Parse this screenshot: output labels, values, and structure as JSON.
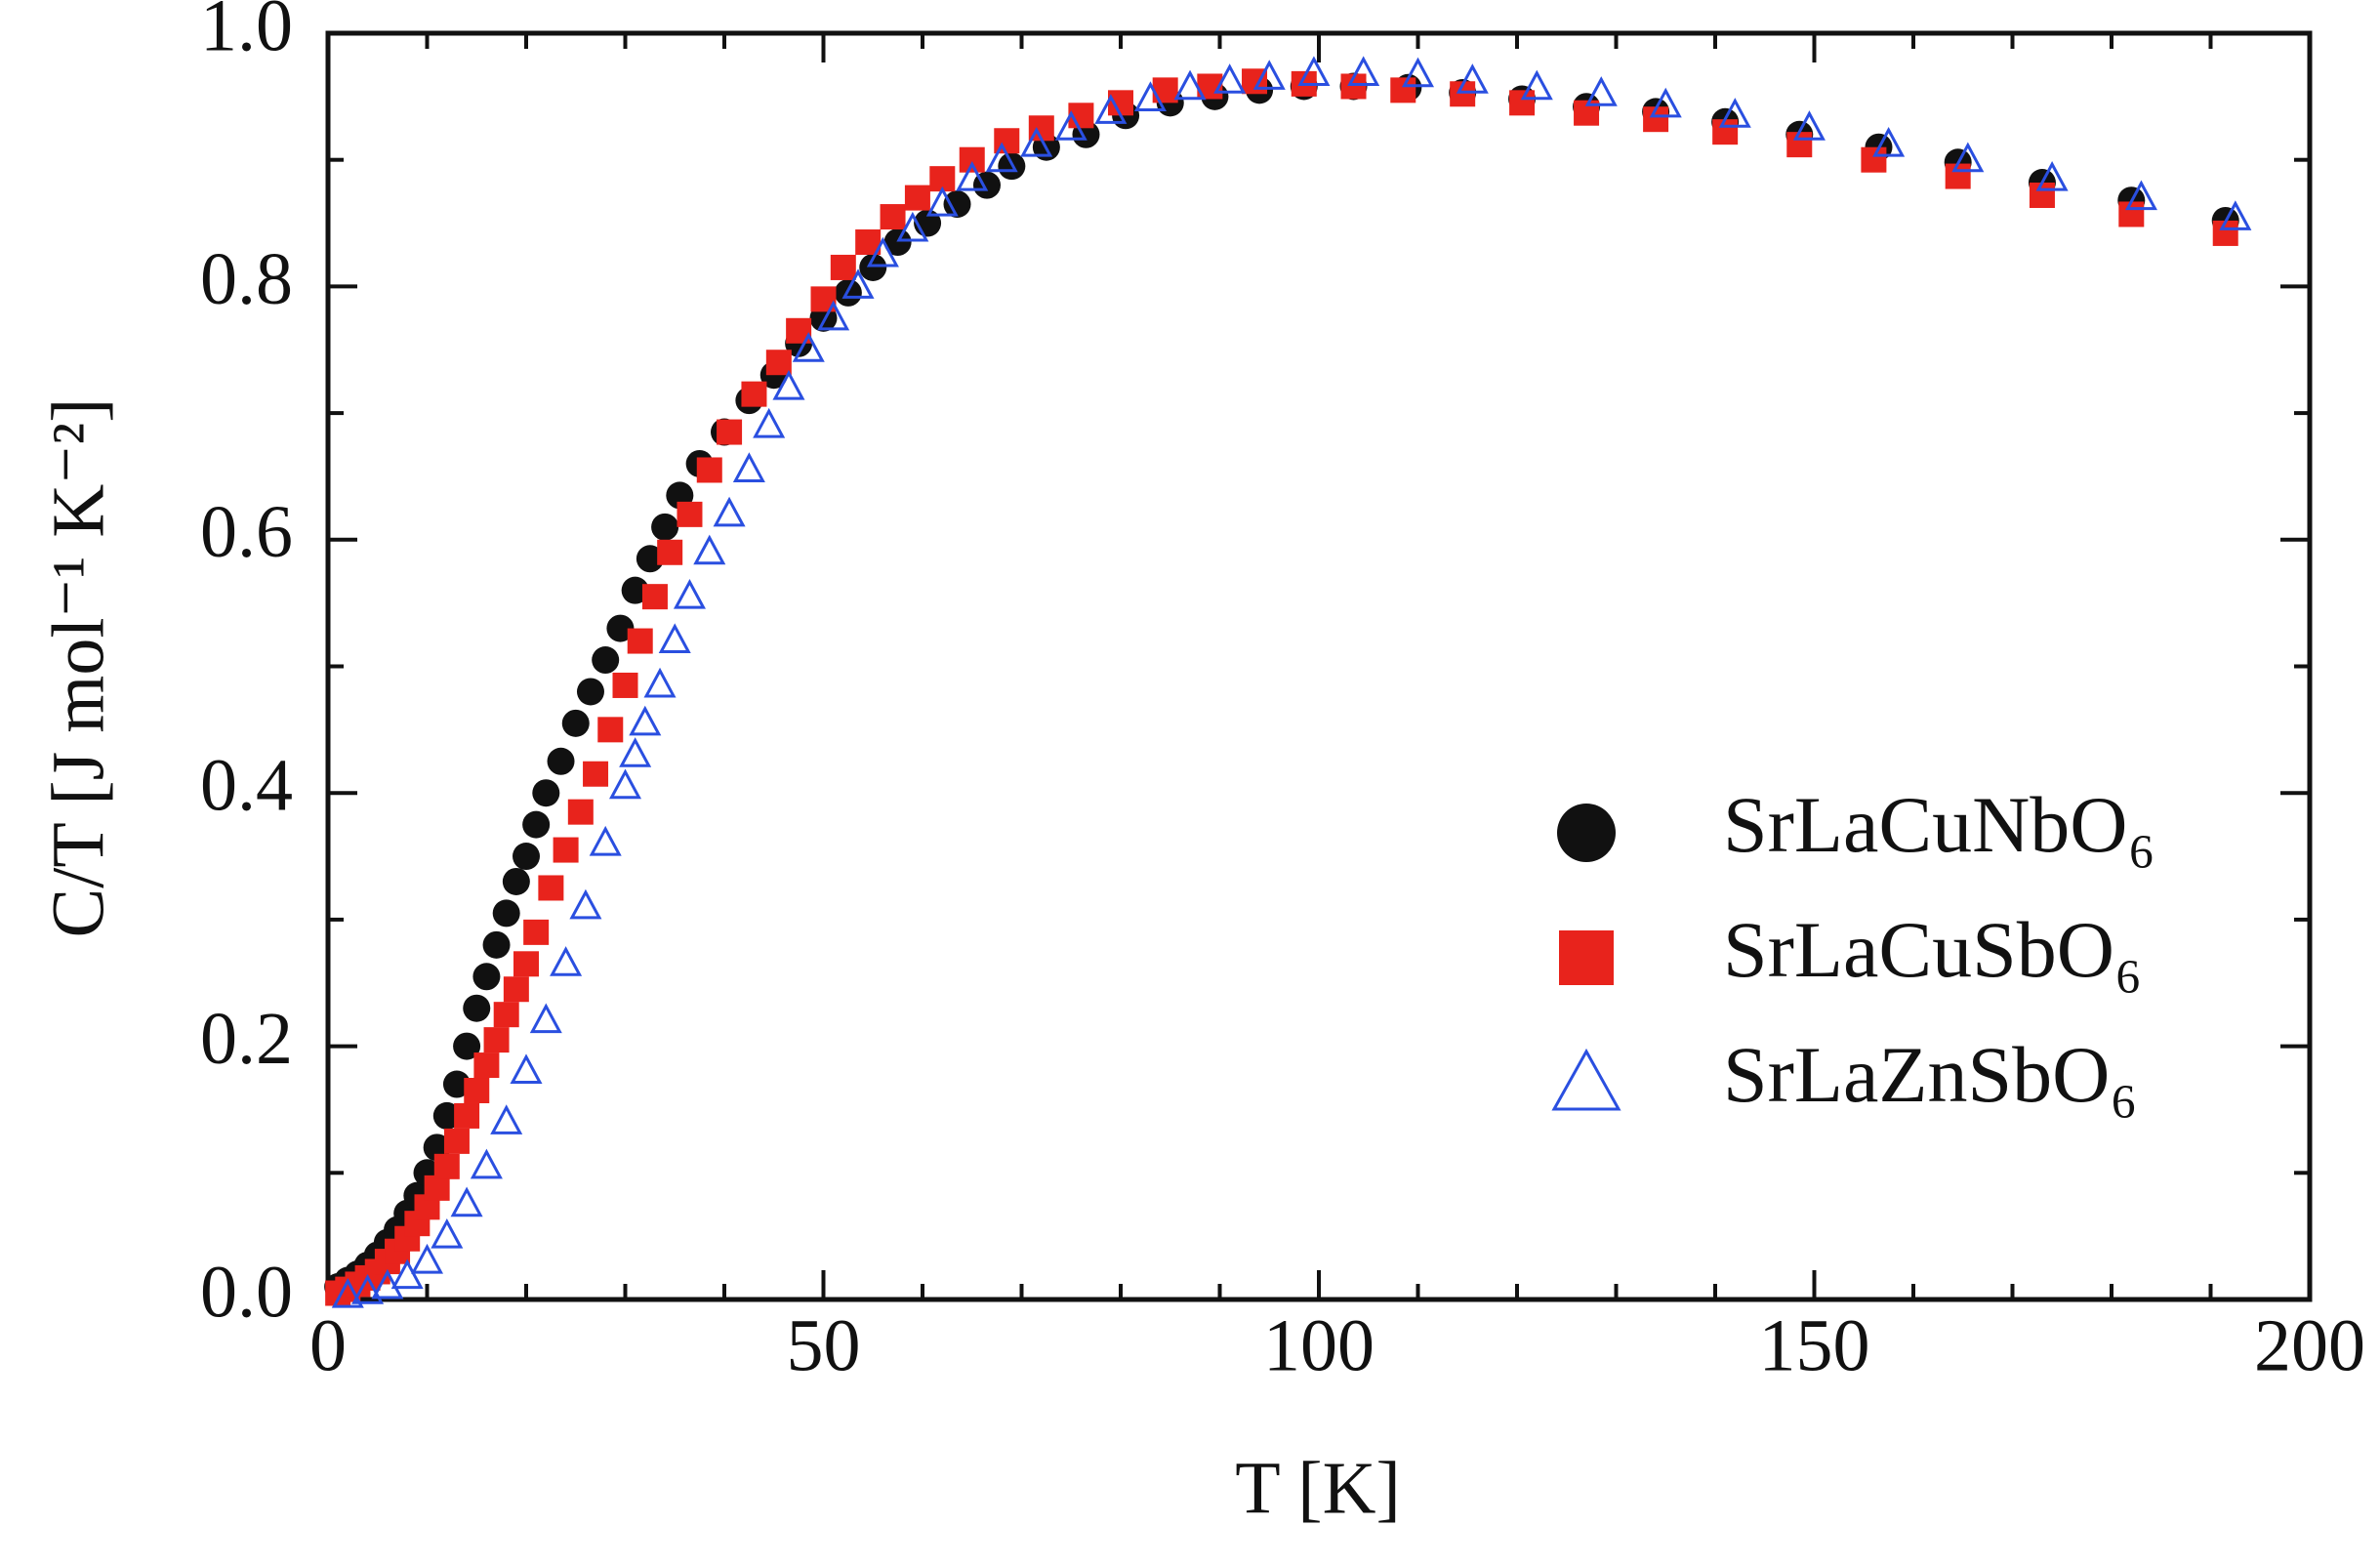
{
  "chart_data": {
    "type": "scatter",
    "xlabel": "T [K]",
    "ylabel": "C/T [J mol⁻¹ K⁻²]",
    "xlim": [
      0,
      200
    ],
    "ylim": [
      0,
      1
    ],
    "xticks": [
      0,
      50,
      100,
      150,
      200
    ],
    "yticks": [
      {
        "value": 0,
        "label": "0.0"
      },
      0.2,
      0.4,
      0.6,
      0.8,
      {
        "value": 1,
        "label": "1.0"
      }
    ],
    "xminorticks": [
      10,
      20,
      30,
      40,
      60,
      70,
      80,
      90,
      110,
      120,
      130,
      140,
      160,
      170,
      180,
      190
    ],
    "yminorticks": [
      0.1,
      0.3,
      0.5,
      0.7,
      0.9
    ],
    "legend": "lower right",
    "series": [
      {
        "name": "SrLaCuNbO₆",
        "color": "#111111",
        "marker": "circle",
        "x": [
          1,
          2,
          3,
          4,
          5,
          6,
          7,
          8,
          9,
          10,
          11,
          12,
          13,
          14,
          15,
          16,
          17,
          18,
          19,
          20,
          21,
          22,
          23.5,
          25,
          26.5,
          28,
          29.5,
          31,
          32.5,
          34,
          35.5,
          37.5,
          40,
          42.5,
          45,
          47.5,
          50,
          52.5,
          55,
          57.5,
          60.5,
          63.5,
          66.5,
          69,
          72.5,
          76.5,
          80.5,
          85,
          89.5,
          94,
          98.5,
          103.5,
          109,
          114.5,
          120.5,
          127,
          134,
          141,
          148.5,
          156.5,
          164.5,
          173,
          182,
          191.5
        ],
        "values": [
          0.01,
          0.015,
          0.02,
          0.027,
          0.035,
          0.045,
          0.055,
          0.068,
          0.082,
          0.1,
          0.12,
          0.145,
          0.17,
          0.2,
          0.23,
          0.255,
          0.28,
          0.305,
          0.33,
          0.35,
          0.375,
          0.4,
          0.425,
          0.455,
          0.48,
          0.505,
          0.53,
          0.56,
          0.585,
          0.61,
          0.635,
          0.66,
          0.685,
          0.71,
          0.73,
          0.755,
          0.775,
          0.795,
          0.815,
          0.835,
          0.85,
          0.865,
          0.88,
          0.895,
          0.91,
          0.92,
          0.935,
          0.945,
          0.95,
          0.955,
          0.958,
          0.958,
          0.957,
          0.953,
          0.948,
          0.942,
          0.938,
          0.93,
          0.92,
          0.91,
          0.898,
          0.882,
          0.868,
          0.852
        ]
      },
      {
        "name": "SrLaCuSbO₆",
        "color": "#e8231c",
        "marker": "square",
        "x": [
          1,
          2,
          3,
          4,
          5,
          6,
          7,
          8,
          9,
          10,
          11,
          12,
          13,
          14,
          15,
          16,
          17,
          18,
          19,
          20,
          21,
          22.5,
          24,
          25.5,
          27,
          28.5,
          30,
          31.5,
          33,
          34.5,
          36.5,
          38.5,
          40.5,
          43,
          45.5,
          47.5,
          50,
          52,
          54.5,
          57,
          59.5,
          62,
          65,
          68.5,
          72,
          76,
          80,
          84.5,
          89,
          93.5,
          98.5,
          103.5,
          108.5,
          114.5,
          120.5,
          127,
          134,
          141,
          148.5,
          156,
          164.5,
          173,
          182,
          191.5
        ],
        "values": [
          0.005,
          0.008,
          0.012,
          0.017,
          0.022,
          0.03,
          0.038,
          0.048,
          0.06,
          0.073,
          0.088,
          0.105,
          0.125,
          0.145,
          0.165,
          0.185,
          0.205,
          0.225,
          0.245,
          0.265,
          0.29,
          0.325,
          0.355,
          0.385,
          0.415,
          0.45,
          0.485,
          0.52,
          0.555,
          0.59,
          0.62,
          0.655,
          0.685,
          0.715,
          0.74,
          0.765,
          0.79,
          0.815,
          0.835,
          0.855,
          0.87,
          0.885,
          0.9,
          0.915,
          0.925,
          0.935,
          0.945,
          0.955,
          0.958,
          0.962,
          0.96,
          0.958,
          0.955,
          0.952,
          0.945,
          0.937,
          0.932,
          0.922,
          0.912,
          0.9,
          0.887,
          0.872,
          0.857,
          0.842
        ]
      },
      {
        "name": "SrLaZnSbO₆",
        "color": "#2a4fe0",
        "marker": "triangle-open",
        "x": [
          2,
          4,
          6,
          8,
          10,
          12,
          14,
          16,
          18,
          20,
          22,
          24,
          26,
          28,
          30,
          31,
          32,
          33.5,
          35,
          36.5,
          38.5,
          40.5,
          42.5,
          44.5,
          46.5,
          48.5,
          51,
          53.5,
          56,
          59,
          62,
          65,
          68,
          71.5,
          75,
          79,
          83,
          87,
          91,
          95,
          99.5,
          104.5,
          110,
          115.5,
          122,
          128.5,
          135,
          142,
          149.5,
          157.5,
          165.5,
          174,
          183,
          192.5
        ],
        "values": [
          0.003,
          0.006,
          0.01,
          0.018,
          0.03,
          0.05,
          0.075,
          0.105,
          0.14,
          0.18,
          0.22,
          0.265,
          0.31,
          0.36,
          0.405,
          0.43,
          0.455,
          0.485,
          0.52,
          0.555,
          0.59,
          0.62,
          0.655,
          0.69,
          0.72,
          0.75,
          0.775,
          0.8,
          0.825,
          0.845,
          0.865,
          0.885,
          0.9,
          0.912,
          0.925,
          0.938,
          0.948,
          0.957,
          0.962,
          0.965,
          0.968,
          0.968,
          0.967,
          0.962,
          0.957,
          0.952,
          0.943,
          0.935,
          0.925,
          0.912,
          0.9,
          0.885,
          0.87,
          0.854
        ]
      }
    ]
  }
}
